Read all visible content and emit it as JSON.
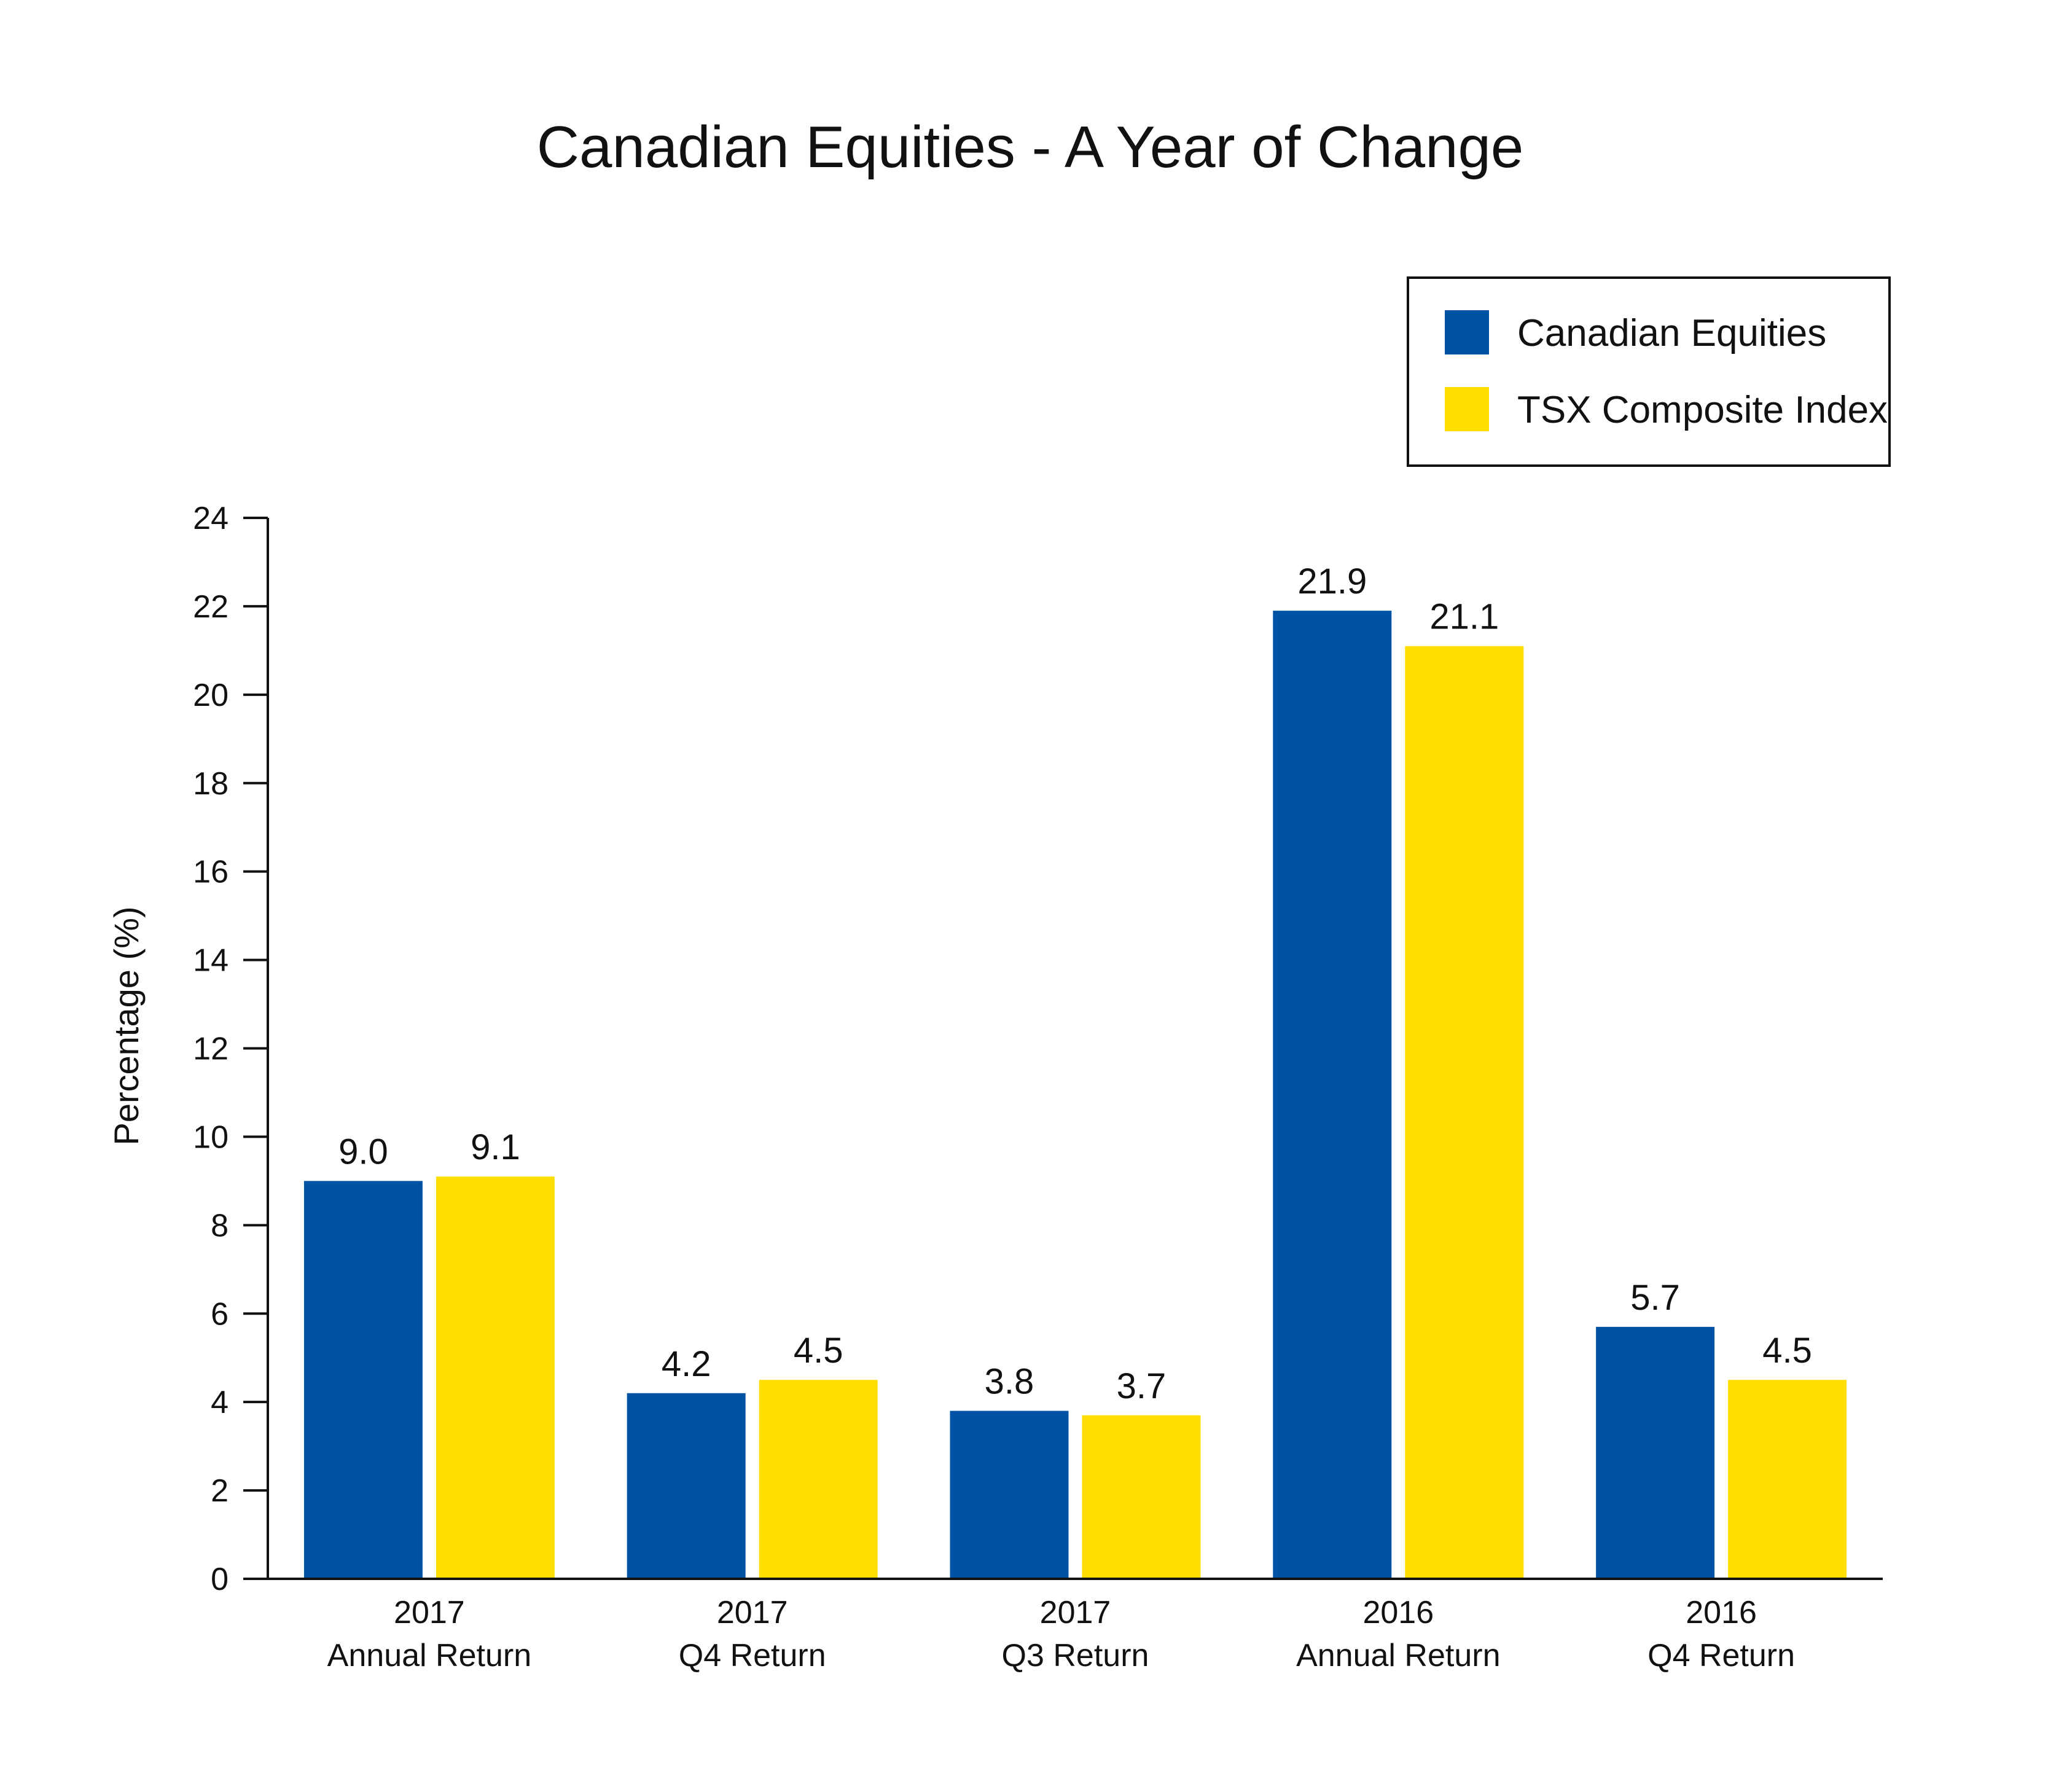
{
  "chart_data": {
    "type": "bar",
    "title": "Canadian Equities - A Year of Change",
    "xlabel": "",
    "ylabel": "Percentage (%)",
    "ylim": [
      0,
      24
    ],
    "yticks": [
      0,
      2,
      4,
      6,
      8,
      10,
      12,
      14,
      16,
      18,
      20,
      22,
      24
    ],
    "grid": false,
    "legend_position": "top-right",
    "categories": [
      [
        "2017",
        "Annual Return"
      ],
      [
        "2017",
        "Q4 Return"
      ],
      [
        "2017",
        "Q3 Return"
      ],
      [
        "2016",
        "Annual Return"
      ],
      [
        "2016",
        "Q4 Return"
      ]
    ],
    "series": [
      {
        "name": "Canadian Equities",
        "color": "#0052A5",
        "values": [
          9.0,
          4.2,
          3.8,
          21.9,
          5.7
        ],
        "labels": [
          "9.0",
          "4.2",
          "3.8",
          "21.9",
          "5.7"
        ]
      },
      {
        "name": "TSX Composite Index",
        "color": "#FFDE00",
        "values": [
          9.1,
          4.5,
          3.7,
          21.1,
          4.5
        ],
        "labels": [
          "9.1",
          "4.5",
          "3.7",
          "21.1",
          "4.5"
        ]
      }
    ]
  }
}
